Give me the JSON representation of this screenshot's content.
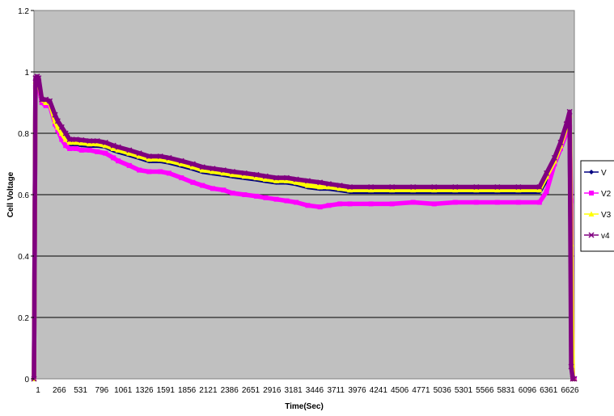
{
  "chart_data": {
    "type": "line",
    "xlabel": "Time(Sec)",
    "ylabel": "Cell Voltage",
    "ylim": [
      0,
      1.2
    ],
    "xlim": [
      1,
      6800
    ],
    "yticks": [
      "0",
      "0.2",
      "0.4",
      "0.6",
      "0.8",
      "1",
      "1.2"
    ],
    "xticks": [
      "1",
      "266",
      "531",
      "796",
      "1061",
      "1326",
      "1591",
      "1856",
      "2121",
      "2386",
      "2651",
      "2916",
      "3181",
      "3446",
      "3711",
      "3976",
      "4241",
      "4506",
      "4771",
      "5036",
      "5301",
      "5566",
      "5831",
      "6096",
      "6361",
      "6626"
    ],
    "grid": "horizontal",
    "legend_position": "right",
    "plot_background": "#c0c0c0",
    "series": [
      {
        "name": "V",
        "color": "#000080",
        "marker": "diamond",
        "x": [
          1,
          20,
          40,
          60,
          100,
          150,
          200,
          266,
          300,
          350,
          400,
          450,
          531,
          600,
          700,
          796,
          900,
          1000,
          1061,
          1200,
          1326,
          1450,
          1591,
          1700,
          1856,
          2000,
          2121,
          2250,
          2386,
          2500,
          2651,
          2800,
          2916,
          3050,
          3181,
          3300,
          3446,
          3600,
          3711,
          3850,
          3976,
          4241,
          4506,
          4771,
          5036,
          5301,
          5566,
          5831,
          6096,
          6361,
          6450,
          6550,
          6626,
          6700,
          6740,
          6760,
          6780,
          6800
        ],
        "y": [
          0.0,
          0.96,
          0.97,
          0.96,
          0.9,
          0.9,
          0.9,
          0.84,
          0.82,
          0.8,
          0.78,
          0.765,
          0.765,
          0.762,
          0.76,
          0.76,
          0.757,
          0.745,
          0.74,
          0.73,
          0.72,
          0.71,
          0.71,
          0.705,
          0.695,
          0.685,
          0.675,
          0.67,
          0.665,
          0.66,
          0.655,
          0.65,
          0.645,
          0.64,
          0.64,
          0.635,
          0.625,
          0.62,
          0.62,
          0.615,
          0.61,
          0.61,
          0.61,
          0.61,
          0.61,
          0.61,
          0.61,
          0.61,
          0.61,
          0.61,
          0.65,
          0.7,
          0.75,
          0.8,
          0.84,
          0.27,
          0.0,
          0.0
        ]
      },
      {
        "name": "V2",
        "color": "#ff00ff",
        "marker": "square",
        "x": [
          1,
          20,
          40,
          60,
          100,
          150,
          200,
          266,
          300,
          350,
          400,
          450,
          531,
          600,
          700,
          796,
          900,
          1000,
          1061,
          1200,
          1326,
          1450,
          1591,
          1700,
          1856,
          2000,
          2121,
          2250,
          2386,
          2500,
          2651,
          2800,
          2916,
          3050,
          3181,
          3300,
          3446,
          3600,
          3711,
          3850,
          3976,
          4241,
          4506,
          4771,
          5036,
          5301,
          5566,
          5831,
          6096,
          6361,
          6450,
          6550,
          6626,
          6700,
          6740,
          6760,
          6780,
          6800
        ],
        "y": [
          0.0,
          0.95,
          0.96,
          0.95,
          0.9,
          0.89,
          0.89,
          0.83,
          0.81,
          0.78,
          0.76,
          0.75,
          0.75,
          0.745,
          0.745,
          0.74,
          0.735,
          0.72,
          0.71,
          0.695,
          0.68,
          0.675,
          0.675,
          0.67,
          0.655,
          0.64,
          0.63,
          0.62,
          0.615,
          0.605,
          0.6,
          0.595,
          0.59,
          0.585,
          0.58,
          0.575,
          0.565,
          0.56,
          0.565,
          0.57,
          0.57,
          0.57,
          0.57,
          0.575,
          0.57,
          0.575,
          0.575,
          0.575,
          0.575,
          0.575,
          0.61,
          0.7,
          0.75,
          0.8,
          0.82,
          0.58,
          0.0,
          0.0
        ]
      },
      {
        "name": "V3",
        "color": "#ffff00",
        "marker": "triangle",
        "x": [
          1,
          20,
          40,
          60,
          100,
          150,
          200,
          266,
          300,
          350,
          400,
          450,
          531,
          600,
          700,
          796,
          900,
          1000,
          1061,
          1200,
          1326,
          1450,
          1591,
          1700,
          1856,
          2000,
          2121,
          2250,
          2386,
          2500,
          2651,
          2800,
          2916,
          3050,
          3181,
          3300,
          3446,
          3600,
          3711,
          3850,
          3976,
          4241,
          4506,
          4771,
          5036,
          5301,
          5566,
          5831,
          6096,
          6361,
          6450,
          6550,
          6626,
          6700,
          6740,
          6760,
          6780,
          6800
        ],
        "y": [
          0.0,
          0.97,
          0.98,
          0.97,
          0.91,
          0.9,
          0.9,
          0.84,
          0.82,
          0.8,
          0.78,
          0.77,
          0.77,
          0.768,
          0.765,
          0.765,
          0.76,
          0.75,
          0.745,
          0.735,
          0.725,
          0.715,
          0.715,
          0.71,
          0.7,
          0.69,
          0.68,
          0.675,
          0.67,
          0.665,
          0.66,
          0.655,
          0.65,
          0.645,
          0.645,
          0.64,
          0.63,
          0.625,
          0.625,
          0.62,
          0.615,
          0.615,
          0.615,
          0.615,
          0.615,
          0.615,
          0.615,
          0.615,
          0.615,
          0.615,
          0.66,
          0.71,
          0.76,
          0.82,
          0.86,
          0.44,
          0.0,
          0.0
        ]
      },
      {
        "name": "v4",
        "color": "#800080",
        "marker": "x",
        "x": [
          1,
          20,
          40,
          60,
          100,
          150,
          200,
          266,
          300,
          350,
          400,
          450,
          531,
          600,
          700,
          796,
          900,
          1000,
          1061,
          1200,
          1326,
          1450,
          1591,
          1700,
          1856,
          2000,
          2121,
          2250,
          2386,
          2500,
          2651,
          2800,
          2916,
          3050,
          3181,
          3300,
          3446,
          3600,
          3711,
          3850,
          3976,
          4241,
          4506,
          4771,
          5036,
          5301,
          5566,
          5831,
          6096,
          6361,
          6450,
          6550,
          6626,
          6700,
          6740,
          6760,
          6780,
          6800
        ],
        "y": [
          0.0,
          0.98,
          0.985,
          0.98,
          0.91,
          0.91,
          0.905,
          0.86,
          0.84,
          0.82,
          0.8,
          0.78,
          0.78,
          0.778,
          0.775,
          0.775,
          0.77,
          0.76,
          0.755,
          0.745,
          0.735,
          0.725,
          0.725,
          0.72,
          0.71,
          0.7,
          0.69,
          0.685,
          0.68,
          0.675,
          0.67,
          0.665,
          0.66,
          0.655,
          0.655,
          0.65,
          0.645,
          0.64,
          0.635,
          0.63,
          0.625,
          0.625,
          0.625,
          0.625,
          0.625,
          0.625,
          0.625,
          0.625,
          0.625,
          0.625,
          0.67,
          0.72,
          0.77,
          0.83,
          0.87,
          0.04,
          0.0,
          0.0
        ]
      }
    ]
  }
}
